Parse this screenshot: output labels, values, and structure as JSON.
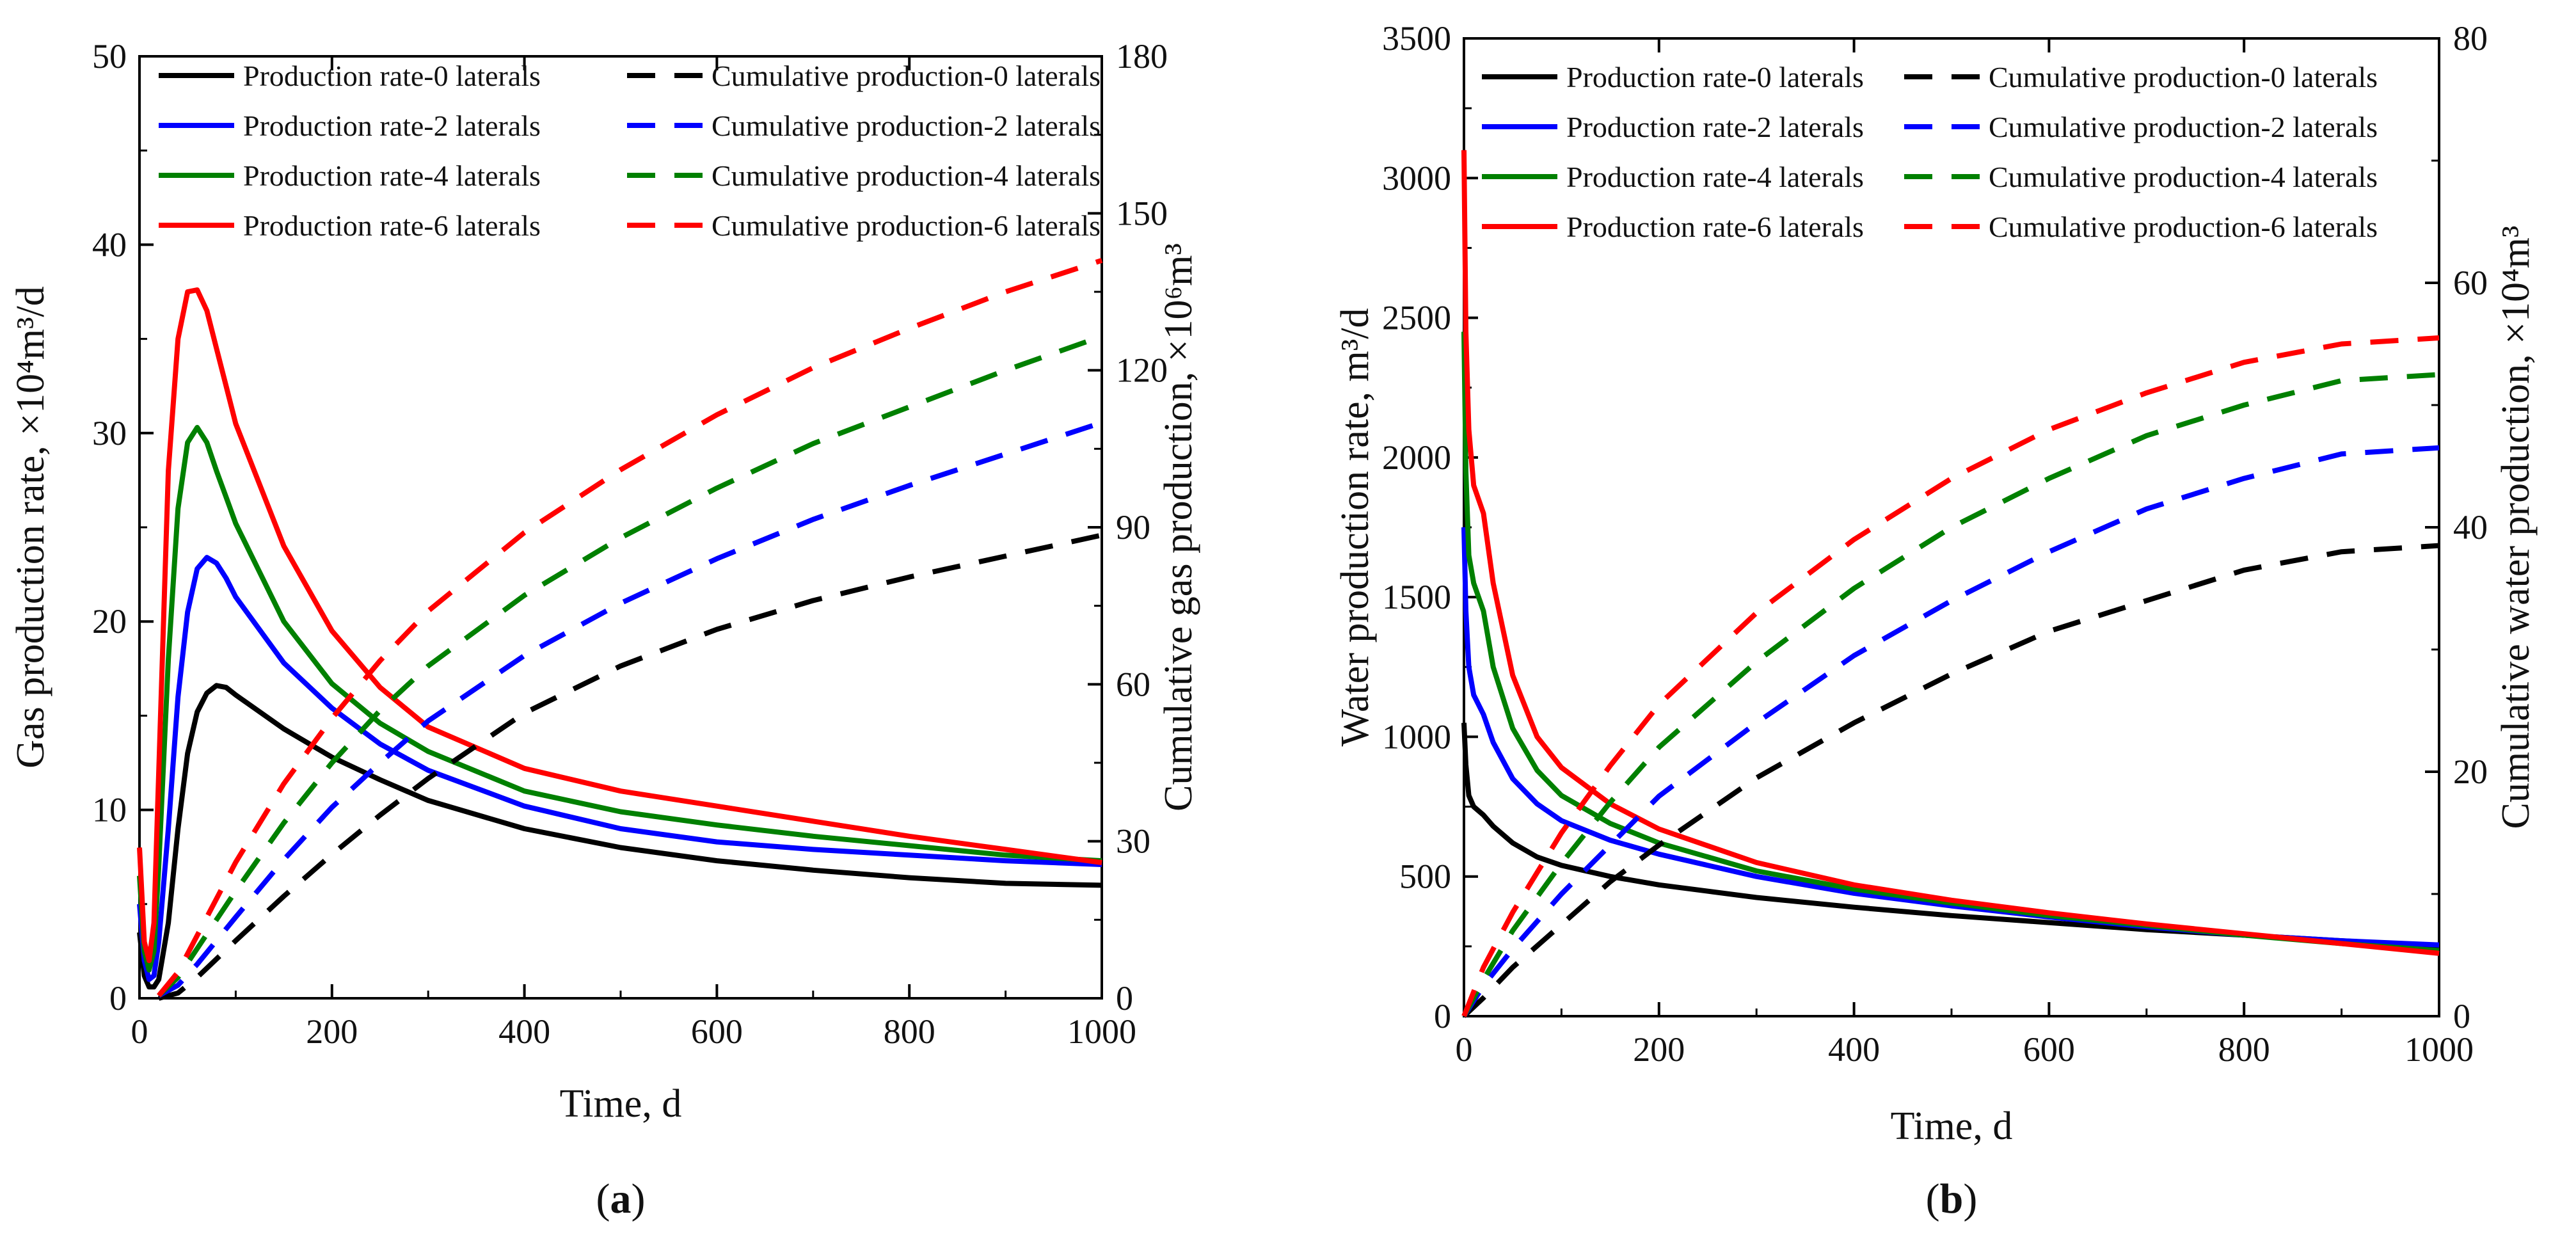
{
  "chart_data": [
    {
      "id": "a",
      "type": "line",
      "caption": "(a)",
      "caption_letter": "a",
      "xlabel": "Time, d",
      "ylabel_left": "Gas production rate, ×10⁴m³/d",
      "ylabel_right": "Cumulative gas production, ×10⁶m³",
      "xlim": [
        0,
        1000
      ],
      "ylim_left": [
        0,
        50
      ],
      "ylim_right": [
        0,
        180
      ],
      "xticks": [
        "0",
        "200",
        "400",
        "600",
        "800",
        "1000"
      ],
      "xtick_values": [
        0,
        200,
        400,
        600,
        800,
        1000
      ],
      "yticks_left": [
        "0",
        "10",
        "20",
        "30",
        "40",
        "50"
      ],
      "ytick_values_left": [
        0,
        10,
        20,
        30,
        40,
        50
      ],
      "yticks_right": [
        "0",
        "30",
        "60",
        "90",
        "120",
        "150",
        "180"
      ],
      "ytick_values_right": [
        0,
        30,
        60,
        90,
        120,
        150,
        180
      ],
      "legend": [
        "Production rate-0 laterals",
        "Cumulative production-0 laterals",
        "Production rate-2 laterals",
        "Cumulative production-2 laterals",
        "Production rate-4 laterals",
        "Cumulative production-4 laterals",
        "Production rate-6 laterals",
        "Cumulative production-6 laterals"
      ],
      "legend_dashed": [
        false,
        true,
        false,
        true,
        false,
        true,
        false,
        true
      ],
      "legend_colors": [
        "#000000",
        "#000000",
        "#0000ff",
        "#0000ff",
        "#008000",
        "#008000",
        "#ff0000",
        "#ff0000"
      ],
      "series": [
        {
          "name": "Production rate-0 laterals",
          "axis": "left",
          "dashed": false,
          "color": "#000000",
          "x": [
            0,
            5,
            10,
            15,
            20,
            30,
            40,
            50,
            60,
            70,
            80,
            90,
            100,
            150,
            200,
            250,
            300,
            400,
            500,
            600,
            700,
            800,
            900,
            1000
          ],
          "y": [
            3.5,
            1.2,
            0.6,
            0.6,
            1.0,
            4.0,
            9.0,
            13.0,
            15.2,
            16.2,
            16.6,
            16.5,
            16.1,
            14.3,
            12.8,
            11.6,
            10.5,
            9.0,
            8.0,
            7.3,
            6.8,
            6.4,
            6.1,
            6.0
          ]
        },
        {
          "name": "Production rate-2 laterals",
          "axis": "left",
          "dashed": false,
          "color": "#0000ff",
          "x": [
            0,
            5,
            10,
            15,
            20,
            30,
            40,
            50,
            60,
            70,
            80,
            90,
            100,
            150,
            200,
            250,
            300,
            400,
            500,
            600,
            700,
            800,
            900,
            1000
          ],
          "y": [
            5.0,
            2.0,
            1.0,
            1.2,
            3.0,
            9.0,
            16.0,
            20.5,
            22.8,
            23.4,
            23.1,
            22.3,
            21.3,
            17.8,
            15.4,
            13.5,
            12.1,
            10.2,
            9.0,
            8.3,
            7.9,
            7.6,
            7.3,
            7.1
          ]
        },
        {
          "name": "Production rate-4 laterals",
          "axis": "left",
          "dashed": false,
          "color": "#008000",
          "x": [
            0,
            5,
            10,
            15,
            20,
            30,
            40,
            50,
            60,
            70,
            80,
            90,
            100,
            150,
            200,
            250,
            300,
            400,
            500,
            600,
            700,
            800,
            900,
            1000
          ],
          "y": [
            6.5,
            2.5,
            1.5,
            2.5,
            7.0,
            18.0,
            26.0,
            29.5,
            30.3,
            29.5,
            28.0,
            26.6,
            25.2,
            20.0,
            16.7,
            14.6,
            13.1,
            11.0,
            9.9,
            9.2,
            8.6,
            8.1,
            7.6,
            7.3
          ]
        },
        {
          "name": "Production rate-6 laterals",
          "axis": "left",
          "dashed": false,
          "color": "#ff0000",
          "x": [
            0,
            5,
            10,
            15,
            20,
            30,
            40,
            50,
            60,
            70,
            80,
            90,
            100,
            150,
            200,
            250,
            300,
            400,
            500,
            600,
            700,
            800,
            900,
            1000
          ],
          "y": [
            8.0,
            3.0,
            2.0,
            4.0,
            12.0,
            28.0,
            35.0,
            37.5,
            37.6,
            36.5,
            34.5,
            32.5,
            30.5,
            24.0,
            19.5,
            16.5,
            14.4,
            12.2,
            11.0,
            10.2,
            9.4,
            8.6,
            7.9,
            7.2
          ]
        },
        {
          "name": "Cumulative production-0 laterals",
          "axis": "right",
          "dashed": true,
          "color": "#000000",
          "x": [
            20,
            40,
            60,
            80,
            100,
            150,
            200,
            250,
            300,
            400,
            500,
            600,
            700,
            800,
            900,
            1000
          ],
          "y": [
            0.0,
            1.0,
            4.0,
            7.5,
            11.0,
            19.5,
            27.5,
            35.0,
            42.0,
            54.5,
            63.5,
            70.5,
            76.0,
            80.5,
            84.5,
            88.5
          ]
        },
        {
          "name": "Cumulative production-2 laterals",
          "axis": "right",
          "dashed": true,
          "color": "#0000ff",
          "x": [
            20,
            40,
            60,
            80,
            100,
            150,
            200,
            250,
            300,
            400,
            500,
            600,
            700,
            800,
            900,
            1000
          ],
          "y": [
            0.5,
            2.5,
            6.5,
            11.0,
            15.5,
            26.5,
            36.5,
            45.0,
            53.0,
            65.5,
            75.5,
            84.0,
            91.5,
            98.0,
            104.0,
            110.0
          ]
        },
        {
          "name": "Cumulative production-4 laterals",
          "axis": "right",
          "dashed": true,
          "color": "#008000",
          "x": [
            20,
            40,
            60,
            80,
            100,
            150,
            200,
            250,
            300,
            400,
            500,
            600,
            700,
            800,
            900,
            1000
          ],
          "y": [
            0.5,
            4.0,
            9.5,
            15.0,
            20.5,
            33.5,
            45.0,
            55.0,
            63.5,
            77.0,
            88.0,
            97.5,
            106.0,
            113.0,
            120.0,
            126.5
          ]
        },
        {
          "name": "Cumulative production-6 laterals",
          "axis": "right",
          "dashed": true,
          "color": "#ff0000",
          "x": [
            20,
            40,
            60,
            80,
            100,
            150,
            200,
            250,
            300,
            400,
            500,
            600,
            700,
            800,
            900,
            1000
          ],
          "y": [
            0.5,
            5.0,
            12.0,
            19.0,
            26.0,
            41.0,
            53.5,
            64.5,
            74.0,
            89.0,
            101.0,
            111.5,
            120.5,
            128.0,
            135.0,
            141.0
          ]
        }
      ]
    },
    {
      "id": "b",
      "type": "line",
      "caption": "(b)",
      "caption_letter": "b",
      "xlabel": "Time, d",
      "ylabel_left": "Water production rate, m³/d",
      "ylabel_right": "Cumulative water production, ×10⁴m³",
      "xlim": [
        0,
        1000
      ],
      "ylim_left": [
        0,
        3500
      ],
      "ylim_right": [
        0,
        80
      ],
      "xticks": [
        "0",
        "200",
        "400",
        "600",
        "800",
        "1000"
      ],
      "xtick_values": [
        0,
        200,
        400,
        600,
        800,
        1000
      ],
      "yticks_left": [
        "0",
        "500",
        "1000",
        "1500",
        "2000",
        "2500",
        "3000",
        "3500"
      ],
      "ytick_values_left": [
        0,
        500,
        1000,
        1500,
        2000,
        2500,
        3000,
        3500
      ],
      "yticks_right": [
        "0",
        "20",
        "40",
        "60",
        "80"
      ],
      "ytick_values_right": [
        0,
        20,
        40,
        60,
        80
      ],
      "legend": [
        "Production rate-0 laterals",
        "Cumulative production-0 laterals",
        "Production rate-2 laterals",
        "Cumulative production-2 laterals",
        "Production rate-4 laterals",
        "Cumulative production-4 laterals",
        "Production rate-6 laterals",
        "Cumulative production-6 laterals"
      ],
      "legend_dashed": [
        false,
        true,
        false,
        true,
        false,
        true,
        false,
        true
      ],
      "legend_colors": [
        "#000000",
        "#000000",
        "#0000ff",
        "#0000ff",
        "#008000",
        "#008000",
        "#ff0000",
        "#ff0000"
      ],
      "series": [
        {
          "name": "Production rate-0 laterals",
          "axis": "left",
          "dashed": false,
          "color": "#000000",
          "x": [
            0,
            2,
            5,
            10,
            20,
            30,
            50,
            75,
            100,
            150,
            200,
            300,
            400,
            500,
            600,
            700,
            800,
            900,
            1000
          ],
          "y": [
            1050,
            900,
            790,
            750,
            720,
            680,
            620,
            570,
            540,
            500,
            470,
            425,
            390,
            360,
            335,
            310,
            290,
            270,
            250
          ]
        },
        {
          "name": "Production rate-2 laterals",
          "axis": "left",
          "dashed": false,
          "color": "#0000ff",
          "x": [
            0,
            2,
            5,
            10,
            20,
            30,
            50,
            75,
            100,
            150,
            200,
            300,
            400,
            500,
            600,
            700,
            800,
            900,
            1000
          ],
          "y": [
            1750,
            1450,
            1250,
            1150,
            1080,
            980,
            850,
            760,
            700,
            630,
            580,
            500,
            440,
            395,
            355,
            320,
            290,
            270,
            255
          ]
        },
        {
          "name": "Production rate-4 laterals",
          "axis": "left",
          "dashed": false,
          "color": "#008000",
          "x": [
            0,
            2,
            5,
            10,
            20,
            30,
            50,
            75,
            100,
            150,
            200,
            300,
            400,
            500,
            600,
            700,
            800,
            900,
            1000
          ],
          "y": [
            2450,
            1950,
            1650,
            1550,
            1450,
            1250,
            1030,
            880,
            790,
            690,
            620,
            520,
            455,
            405,
            360,
            325,
            290,
            260,
            235
          ]
        },
        {
          "name": "Production rate-6 laterals",
          "axis": "left",
          "dashed": false,
          "color": "#ff0000",
          "x": [
            0,
            2,
            5,
            10,
            20,
            30,
            50,
            75,
            100,
            150,
            200,
            300,
            400,
            500,
            600,
            700,
            800,
            900,
            1000
          ],
          "y": [
            3100,
            2450,
            2100,
            1900,
            1800,
            1550,
            1220,
            1000,
            890,
            760,
            670,
            550,
            470,
            415,
            370,
            330,
            295,
            260,
            225
          ]
        },
        {
          "name": "Cumulative production-0 laterals",
          "axis": "right",
          "dashed": true,
          "color": "#000000",
          "x": [
            0,
            20,
            50,
            100,
            150,
            200,
            300,
            400,
            500,
            600,
            700,
            800,
            900,
            1000
          ],
          "y": [
            0,
            1.5,
            4.0,
            7.5,
            11.0,
            14.0,
            19.5,
            24.0,
            28.0,
            31.5,
            34.0,
            36.5,
            38.0,
            38.5
          ]
        },
        {
          "name": "Cumulative production-2 laterals",
          "axis": "right",
          "dashed": true,
          "color": "#0000ff",
          "x": [
            0,
            20,
            50,
            100,
            150,
            200,
            300,
            400,
            500,
            600,
            700,
            800,
            900,
            1000
          ],
          "y": [
            0,
            2.5,
            5.5,
            10.0,
            14.0,
            18.0,
            24.0,
            29.5,
            34.0,
            38.0,
            41.5,
            44.0,
            46.0,
            46.5
          ]
        },
        {
          "name": "Cumulative production-4 laterals",
          "axis": "right",
          "dashed": true,
          "color": "#008000",
          "x": [
            0,
            20,
            50,
            100,
            150,
            200,
            300,
            400,
            500,
            600,
            700,
            800,
            900,
            1000
          ],
          "y": [
            0,
            3.0,
            7.0,
            12.5,
            17.5,
            22.0,
            29.0,
            35.0,
            40.0,
            44.0,
            47.5,
            50.0,
            52.0,
            52.5
          ]
        },
        {
          "name": "Cumulative production-6 laterals",
          "axis": "right",
          "dashed": true,
          "color": "#ff0000",
          "x": [
            0,
            20,
            50,
            100,
            150,
            200,
            300,
            400,
            500,
            600,
            700,
            800,
            900,
            1000
          ],
          "y": [
            0,
            4.0,
            8.5,
            15.0,
            20.5,
            25.5,
            33.0,
            39.0,
            44.0,
            48.0,
            51.0,
            53.5,
            55.0,
            55.5
          ]
        }
      ]
    }
  ]
}
